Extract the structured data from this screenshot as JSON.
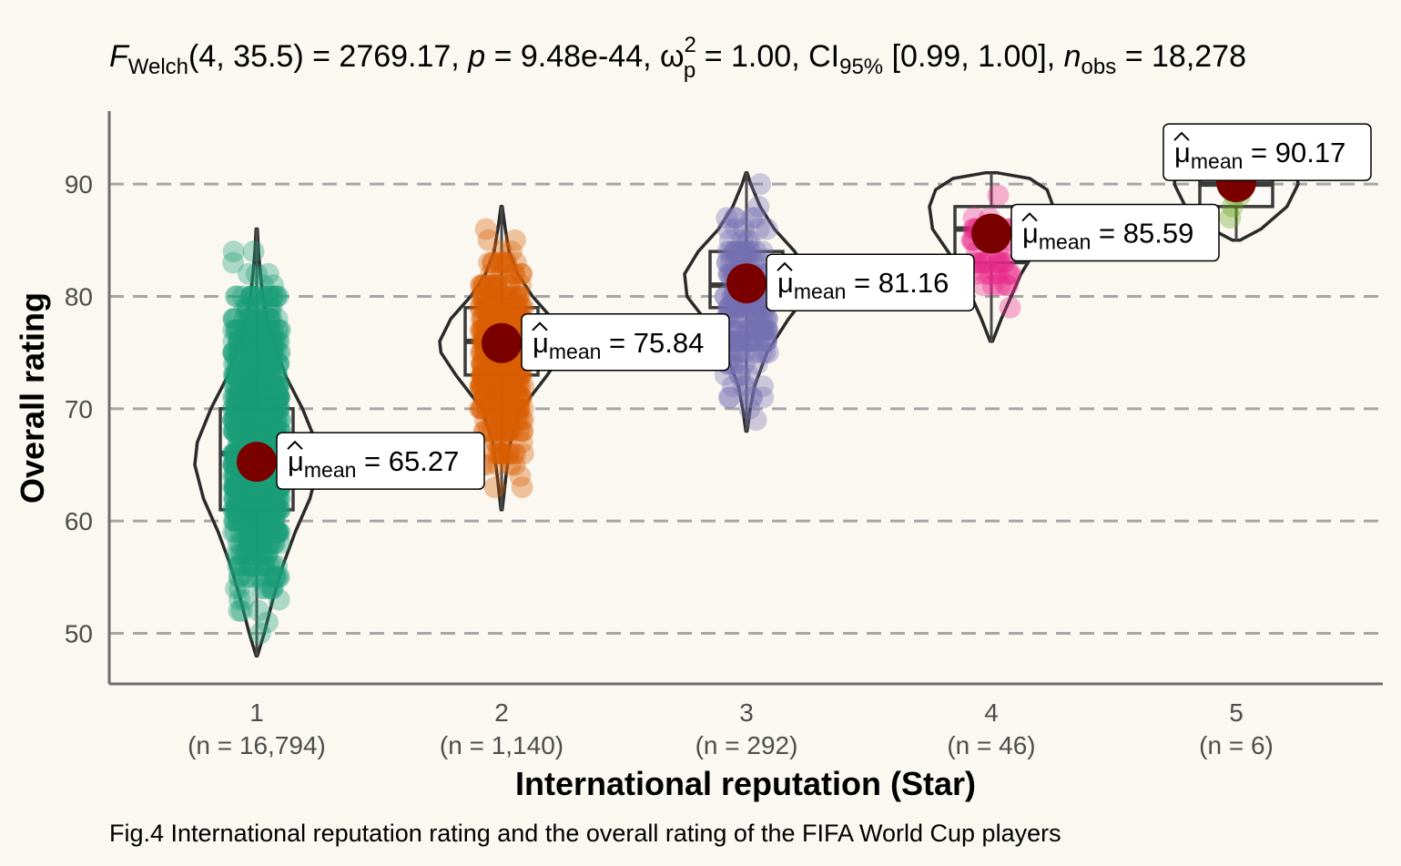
{
  "chart_data": {
    "type": "violin-box-scatter",
    "subtitle": {
      "prefix": "F",
      "prefix_sub": "Welch",
      "df": "(4, 35.5)",
      "stat": " = 2769.17, ",
      "p_label": "p",
      "p_value": " = 9.48e-44, ",
      "effect_symbol": "ω",
      "effect_sup": "2",
      "effect_sub": "p",
      "effect_value": " = 1.00, CI",
      "ci_sub": "95%",
      "ci_value": " [0.99, 1.00], ",
      "n_label": "n",
      "n_sub": "obs",
      "n_value": " = 18,278"
    },
    "xlabel": "International reputation (Star)",
    "ylabel": "Overall rating",
    "caption": "Fig.4 International reputation rating and the overall rating of the FIFA World Cup players",
    "ylim": [
      45.5,
      96.5
    ],
    "yticks": [
      "50",
      "60",
      "70",
      "80",
      "90"
    ],
    "grid": "horizontal dashed",
    "mean_symbol": "μ",
    "mean_sub": "mean",
    "groups": [
      {
        "label": "1",
        "n_label": "(n = 16,794)",
        "color": "#1B9E77",
        "min": 48,
        "q1": 61,
        "median": 66,
        "q3": 70,
        "max": 86,
        "mean": 65.27,
        "mean_label": "= 65.27",
        "violin": [
          [
            48,
            0.01
          ],
          [
            50,
            0.12
          ],
          [
            53,
            0.26
          ],
          [
            56,
            0.42
          ],
          [
            59,
            0.62
          ],
          [
            62,
            0.86
          ],
          [
            65,
            1.0
          ],
          [
            67,
            0.96
          ],
          [
            70,
            0.74
          ],
          [
            73,
            0.46
          ],
          [
            76,
            0.28
          ],
          [
            78,
            0.16
          ],
          [
            80,
            0.1
          ],
          [
            82,
            0.06
          ],
          [
            84,
            0.03
          ],
          [
            86,
            0.01
          ]
        ]
      },
      {
        "label": "2",
        "n_label": "(n = 1,140)",
        "color": "#D95F02",
        "min": 61,
        "q1": 73,
        "median": 76,
        "q3": 79,
        "max": 88,
        "mean": 75.84,
        "mean_label": "= 75.84",
        "violin": [
          [
            61,
            0.01
          ],
          [
            64,
            0.07
          ],
          [
            67,
            0.14
          ],
          [
            70,
            0.32
          ],
          [
            73,
            0.74
          ],
          [
            75,
            0.98
          ],
          [
            76,
            1.0
          ],
          [
            78,
            0.82
          ],
          [
            80,
            0.5
          ],
          [
            82,
            0.26
          ],
          [
            84,
            0.12
          ],
          [
            86,
            0.06
          ],
          [
            88,
            0.01
          ]
        ]
      },
      {
        "label": "3",
        "n_label": "(n = 292)",
        "color": "#7570B3",
        "min": 68,
        "q1": 79,
        "median": 81,
        "q3": 84,
        "max": 91,
        "mean": 81.16,
        "mean_label": "= 81.16",
        "violin": [
          [
            68,
            0.01
          ],
          [
            70,
            0.06
          ],
          [
            72,
            0.13
          ],
          [
            75,
            0.33
          ],
          [
            78,
            0.68
          ],
          [
            80,
            0.96
          ],
          [
            82,
            1.0
          ],
          [
            84,
            0.78
          ],
          [
            86,
            0.45
          ],
          [
            88,
            0.22
          ],
          [
            90,
            0.07
          ],
          [
            91,
            0.01
          ]
        ]
      },
      {
        "label": "4",
        "n_label": "(n = 46)",
        "color": "#E7298A",
        "min": 76,
        "q1": 83,
        "median": 86,
        "q3": 88,
        "max": 91,
        "mean": 85.59,
        "mean_label": "= 85.59",
        "violin": [
          [
            76,
            0.02
          ],
          [
            78,
            0.16
          ],
          [
            80,
            0.32
          ],
          [
            82,
            0.48
          ],
          [
            84,
            0.7
          ],
          [
            86,
            0.95
          ],
          [
            88,
            1.0
          ],
          [
            89.5,
            0.9
          ],
          [
            90.5,
            0.62
          ],
          [
            91,
            0.1
          ]
        ]
      },
      {
        "label": "5",
        "n_label": "(n = 6)",
        "color": "#66A61E",
        "min": 85,
        "q1": 88,
        "median": 90,
        "q3": 92,
        "max": 94,
        "mean": 90.17,
        "mean_label": "= 90.17",
        "violin": [
          [
            85,
            0.06
          ],
          [
            86,
            0.4
          ],
          [
            88,
            0.82
          ],
          [
            90,
            1.0
          ],
          [
            92,
            0.95
          ],
          [
            94,
            0.5
          ]
        ]
      }
    ]
  }
}
